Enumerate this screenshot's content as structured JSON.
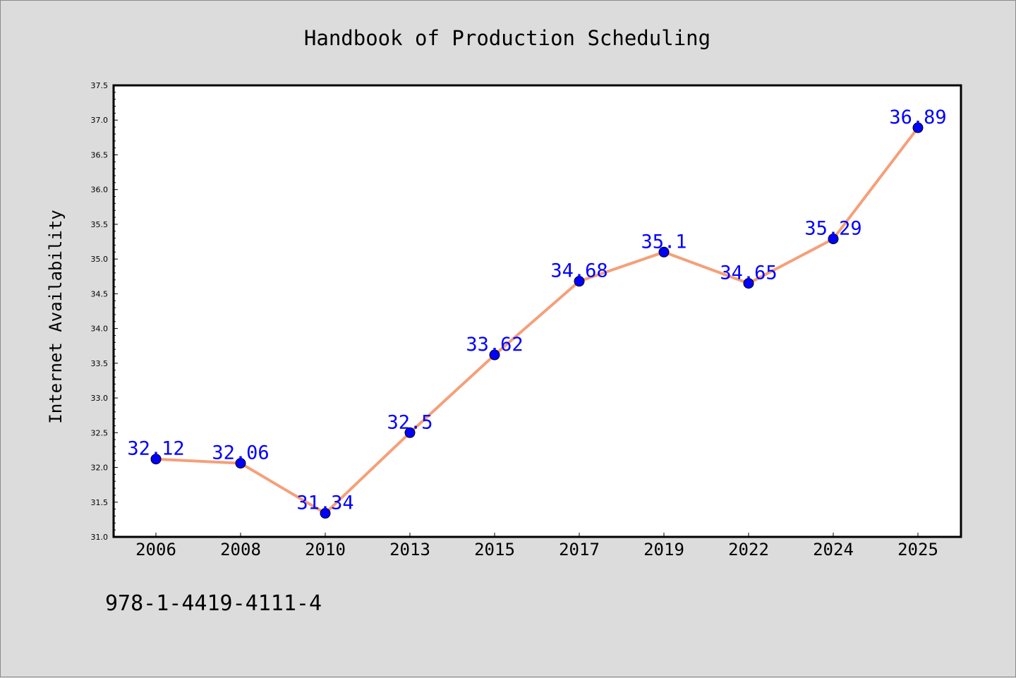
{
  "chart_data": {
    "type": "line",
    "title": "Handbook of Production Scheduling",
    "xlabel": "",
    "ylabel": "Internet Availability",
    "categories": [
      "2006",
      "2008",
      "2010",
      "2013",
      "2015",
      "2017",
      "2019",
      "2022",
      "2024",
      "2025"
    ],
    "series": [
      {
        "values": [
          32.12,
          32.06,
          31.34,
          32.5,
          33.62,
          34.68,
          35.1,
          34.65,
          35.29,
          36.89
        ],
        "data_labels": [
          "32.12",
          "32.06",
          "31.34",
          "32.5",
          "33.62",
          "34.68",
          "35.1",
          "34.65",
          "35.29",
          "36.89"
        ],
        "line_color": "#f4a07a",
        "marker_color": "#0000ff"
      }
    ],
    "ylim": [
      31.0,
      37.5
    ],
    "yticks": [
      "31.0",
      "31.5",
      "32.0",
      "32.5",
      "33.0",
      "33.5",
      "34.0",
      "34.5",
      "35.0",
      "35.5",
      "36.0",
      "36.5",
      "37.0",
      "37.5"
    ],
    "grid": false,
    "legend": "none"
  },
  "footer_text": "978-1-4419-4111-4",
  "colors": {
    "background": "#dcdcdc",
    "plot_background": "#ffffff",
    "axes": "#000000",
    "line": "#f4a07a",
    "marker": "#0000ff",
    "data_label": "#0000ff"
  }
}
